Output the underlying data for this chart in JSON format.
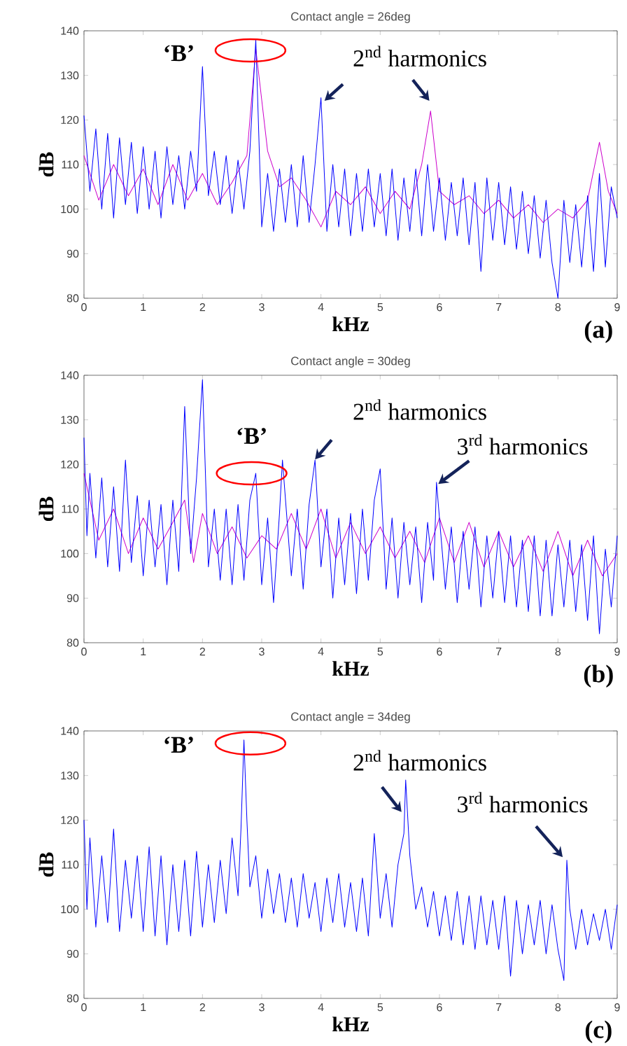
{
  "chart_data": [
    {
      "type": "line",
      "title": "Contact angle = 26deg",
      "xlabel": "kHz",
      "ylabel": "dB",
      "xlim": [
        0,
        9
      ],
      "xticks": [
        0,
        1,
        2,
        3,
        4,
        5,
        6,
        7,
        8,
        9
      ],
      "ylim": [
        80,
        140
      ],
      "yticks": [
        80,
        90,
        100,
        110,
        120,
        130,
        140
      ],
      "series": [
        {
          "color": "#cc00cc",
          "x": [
            0,
            0.25,
            0.5,
            0.75,
            1.0,
            1.25,
            1.5,
            1.75,
            2.0,
            2.25,
            2.5,
            2.75,
            2.9,
            3.1,
            3.3,
            3.5,
            3.75,
            4.0,
            4.25,
            4.5,
            4.75,
            5.0,
            5.25,
            5.5,
            5.7,
            5.85,
            6.0,
            6.25,
            6.5,
            6.75,
            7.0,
            7.25,
            7.5,
            7.75,
            8.0,
            8.25,
            8.5,
            8.7,
            8.85,
            9.0
          ],
          "values": [
            112,
            102,
            110,
            103,
            109,
            101,
            110,
            102,
            108,
            101,
            106,
            112,
            136,
            113,
            105,
            107,
            102,
            96,
            104,
            101,
            105,
            99,
            104,
            100,
            110,
            122,
            104,
            101,
            103,
            99,
            102,
            98,
            101,
            97,
            100,
            98,
            102,
            115,
            104,
            99
          ]
        },
        {
          "color": "#0000ff",
          "x": [
            0,
            0.1,
            0.2,
            0.3,
            0.4,
            0.5,
            0.6,
            0.7,
            0.8,
            0.9,
            1.0,
            1.1,
            1.2,
            1.3,
            1.4,
            1.5,
            1.6,
            1.7,
            1.8,
            1.9,
            2.0,
            2.1,
            2.2,
            2.3,
            2.4,
            2.5,
            2.6,
            2.7,
            2.8,
            2.9,
            3.0,
            3.1,
            3.2,
            3.3,
            3.4,
            3.5,
            3.6,
            3.7,
            3.8,
            3.9,
            4.0,
            4.1,
            4.2,
            4.3,
            4.4,
            4.5,
            4.6,
            4.7,
            4.8,
            4.9,
            5.0,
            5.1,
            5.2,
            5.3,
            5.4,
            5.5,
            5.6,
            5.7,
            5.8,
            5.9,
            6.0,
            6.1,
            6.2,
            6.3,
            6.4,
            6.5,
            6.6,
            6.7,
            6.8,
            6.9,
            7.0,
            7.1,
            7.2,
            7.3,
            7.4,
            7.5,
            7.6,
            7.7,
            7.8,
            7.9,
            8.0,
            8.1,
            8.2,
            8.3,
            8.4,
            8.5,
            8.6,
            8.7,
            8.8,
            8.9,
            9.0
          ],
          "values": [
            121,
            104,
            118,
            100,
            117,
            98,
            116,
            101,
            115,
            99,
            114,
            100,
            113,
            98,
            114,
            101,
            112,
            100,
            113,
            104,
            132,
            103,
            113,
            101,
            112,
            99,
            111,
            100,
            113,
            138,
            96,
            108,
            95,
            109,
            97,
            110,
            96,
            112,
            97,
            110,
            125,
            95,
            110,
            96,
            109,
            94,
            108,
            95,
            109,
            96,
            108,
            94,
            109,
            93,
            107,
            95,
            109,
            94,
            110,
            95,
            107,
            93,
            106,
            94,
            107,
            92,
            106,
            86,
            107,
            93,
            106,
            92,
            105,
            91,
            104,
            90,
            103,
            89,
            102,
            88,
            80,
            102,
            88,
            101,
            87,
            103,
            86,
            108,
            87,
            105,
            98
          ]
        }
      ],
      "annotations": [
        "‘B’",
        "2$^{nd}$ harmonics",
        "(a)"
      ]
    },
    {
      "type": "line",
      "title": "Contact angle = 30deg",
      "xlabel": "kHz",
      "ylabel": "dB",
      "xlim": [
        0,
        9
      ],
      "xticks": [
        0,
        1,
        2,
        3,
        4,
        5,
        6,
        7,
        8,
        9
      ],
      "ylim": [
        80,
        140
      ],
      "yticks": [
        80,
        90,
        100,
        110,
        120,
        130,
        140
      ],
      "series": [
        {
          "color": "#cc00cc",
          "x": [
            0,
            0.25,
            0.5,
            0.75,
            1.0,
            1.25,
            1.5,
            1.7,
            1.85,
            2.0,
            2.25,
            2.5,
            2.75,
            3.0,
            3.25,
            3.5,
            3.75,
            4.0,
            4.25,
            4.5,
            4.75,
            5.0,
            5.25,
            5.5,
            5.75,
            6.0,
            6.25,
            6.5,
            6.75,
            7.0,
            7.25,
            7.5,
            7.75,
            8.0,
            8.25,
            8.5,
            8.75,
            9.0
          ],
          "values": [
            118,
            103,
            110,
            100,
            108,
            101,
            107,
            112,
            98,
            109,
            100,
            106,
            99,
            104,
            101,
            109,
            101,
            110,
            99,
            107,
            100,
            106,
            99,
            105,
            98,
            108,
            98,
            107,
            97,
            105,
            97,
            104,
            96,
            105,
            95,
            103,
            95,
            100
          ]
        },
        {
          "color": "#0000ff",
          "x": [
            0,
            0.05,
            0.1,
            0.2,
            0.3,
            0.4,
            0.5,
            0.6,
            0.7,
            0.8,
            0.9,
            1.0,
            1.1,
            1.2,
            1.3,
            1.4,
            1.5,
            1.6,
            1.7,
            1.8,
            1.9,
            2.0,
            2.1,
            2.2,
            2.3,
            2.4,
            2.5,
            2.6,
            2.7,
            2.8,
            2.9,
            3.0,
            3.1,
            3.2,
            3.3,
            3.35,
            3.5,
            3.6,
            3.7,
            3.8,
            3.9,
            4.0,
            4.1,
            4.2,
            4.3,
            4.4,
            4.5,
            4.6,
            4.7,
            4.8,
            4.9,
            5.0,
            5.1,
            5.2,
            5.3,
            5.4,
            5.5,
            5.6,
            5.7,
            5.8,
            5.9,
            5.95,
            6.1,
            6.2,
            6.3,
            6.4,
            6.5,
            6.6,
            6.7,
            6.8,
            6.9,
            7.0,
            7.1,
            7.2,
            7.3,
            7.4,
            7.5,
            7.6,
            7.7,
            7.8,
            7.9,
            8.0,
            8.1,
            8.2,
            8.3,
            8.4,
            8.5,
            8.6,
            8.7,
            8.8,
            8.9,
            9.0
          ],
          "values": [
            126,
            104,
            118,
            99,
            117,
            97,
            115,
            96,
            121,
            98,
            113,
            95,
            112,
            97,
            111,
            93,
            112,
            96,
            133,
            100,
            117,
            139,
            97,
            110,
            94,
            110,
            93,
            111,
            94,
            112,
            118,
            93,
            108,
            89,
            109,
            121,
            95,
            110,
            92,
            111,
            121,
            97,
            110,
            90,
            108,
            93,
            109,
            91,
            110,
            94,
            112,
            119,
            92,
            108,
            90,
            107,
            93,
            106,
            89,
            107,
            94,
            116,
            92,
            106,
            89,
            105,
            92,
            106,
            88,
            104,
            90,
            105,
            89,
            104,
            88,
            103,
            87,
            104,
            86,
            103,
            86,
            102,
            88,
            103,
            87,
            102,
            85,
            104,
            82,
            101,
            88,
            104
          ]
        }
      ],
      "annotations": [
        "‘B’",
        "2$^{nd}$ harmonics",
        "3$^{rd}$ harmonics",
        "(b)"
      ]
    },
    {
      "type": "line",
      "title": "Contact angle = 34deg",
      "xlabel": "kHz",
      "ylabel": "dB",
      "xlim": [
        0,
        9
      ],
      "xticks": [
        0,
        1,
        2,
        3,
        4,
        5,
        6,
        7,
        8,
        9
      ],
      "ylim": [
        80,
        140
      ],
      "yticks": [
        80,
        90,
        100,
        110,
        120,
        130,
        140
      ],
      "series": [
        {
          "color": "#0000ff",
          "x": [
            0,
            0.05,
            0.1,
            0.2,
            0.3,
            0.4,
            0.5,
            0.6,
            0.7,
            0.8,
            0.9,
            1.0,
            1.1,
            1.2,
            1.3,
            1.4,
            1.5,
            1.6,
            1.7,
            1.8,
            1.9,
            2.0,
            2.1,
            2.2,
            2.3,
            2.4,
            2.5,
            2.6,
            2.65,
            2.7,
            2.75,
            2.8,
            2.9,
            3.0,
            3.1,
            3.2,
            3.3,
            3.4,
            3.5,
            3.6,
            3.7,
            3.8,
            3.9,
            4.0,
            4.1,
            4.2,
            4.3,
            4.4,
            4.5,
            4.6,
            4.7,
            4.8,
            4.9,
            5.0,
            5.1,
            5.2,
            5.3,
            5.4,
            5.43,
            5.5,
            5.6,
            5.7,
            5.8,
            5.9,
            6.0,
            6.1,
            6.2,
            6.3,
            6.4,
            6.5,
            6.6,
            6.7,
            6.8,
            6.9,
            7.0,
            7.1,
            7.2,
            7.3,
            7.4,
            7.5,
            7.6,
            7.7,
            7.8,
            7.9,
            8.0,
            8.1,
            8.15,
            8.2,
            8.3,
            8.4,
            8.5,
            8.6,
            8.7,
            8.8,
            8.9,
            9.0
          ],
          "values": [
            120,
            100,
            116,
            96,
            112,
            97,
            118,
            95,
            111,
            98,
            112,
            95,
            114,
            94,
            112,
            92,
            110,
            95,
            111,
            94,
            113,
            96,
            110,
            97,
            111,
            99,
            116,
            103,
            118,
            138,
            120,
            105,
            112,
            98,
            109,
            99,
            108,
            97,
            107,
            96,
            108,
            98,
            106,
            95,
            107,
            97,
            108,
            96,
            106,
            95,
            107,
            94,
            117,
            98,
            108,
            96,
            110,
            117,
            129,
            112,
            100,
            105,
            96,
            104,
            94,
            103,
            93,
            104,
            92,
            103,
            91,
            103,
            92,
            102,
            91,
            103,
            85,
            102,
            90,
            101,
            92,
            102,
            90,
            101,
            91,
            84,
            111,
            100,
            91,
            100,
            92,
            99,
            93,
            100,
            91,
            101
          ]
        }
      ],
      "annotations": [
        "‘B’",
        "2$^{nd}$ harmonics",
        "3$^{rd}$ harmonics",
        "(c)"
      ]
    }
  ]
}
